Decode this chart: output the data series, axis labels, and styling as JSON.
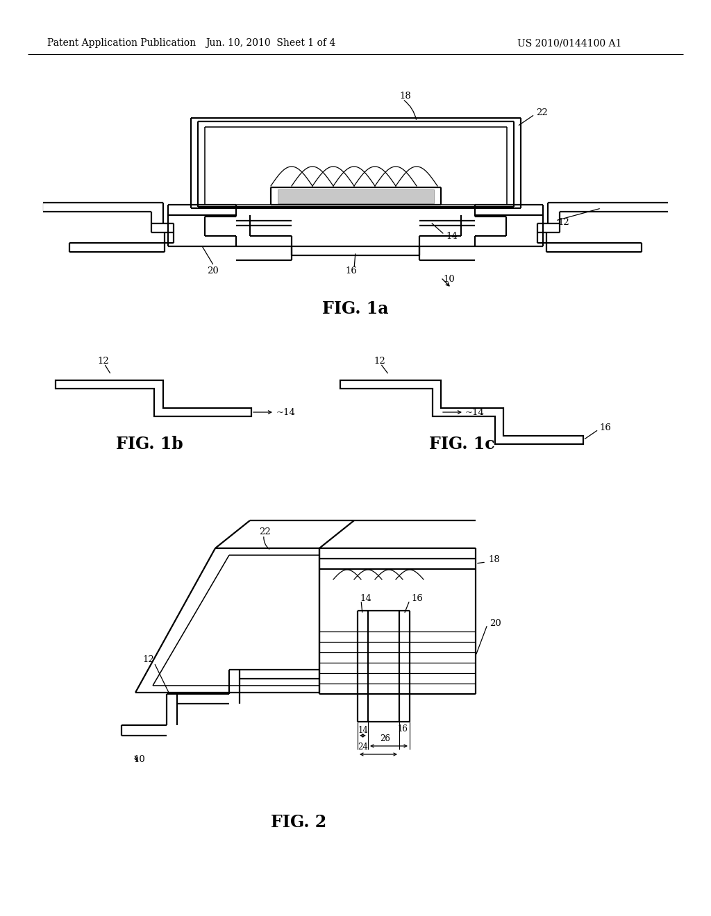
{
  "background_color": "#ffffff",
  "header_left": "Patent Application Publication",
  "header_center": "Jun. 10, 2010  Sheet 1 of 4",
  "header_right": "US 2010/0144100 A1",
  "header_fontsize": 10.5,
  "fig1a_caption": "FIG. 1a",
  "fig1b_caption": "FIG. 1b",
  "fig1c_caption": "FIG. 1c",
  "fig2_caption": "FIG. 2",
  "line_color": "#000000",
  "lw": 1.6
}
